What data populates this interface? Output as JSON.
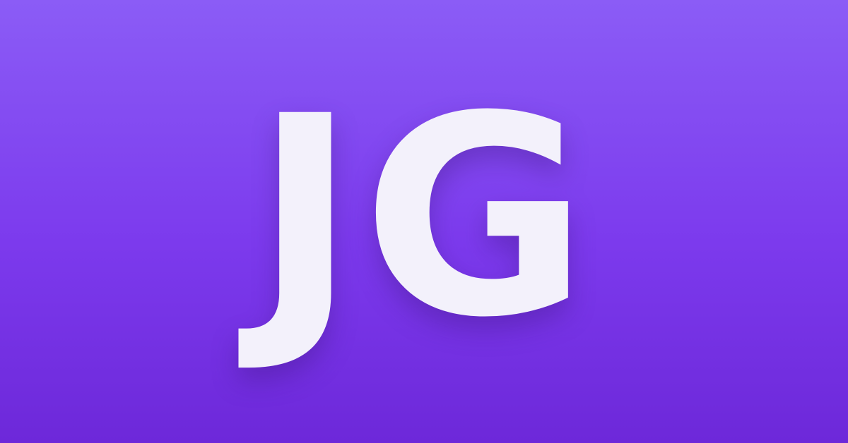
{
  "logo": {
    "monogram": "JG"
  },
  "colors": {
    "background_top": "#8b5cf6",
    "background_bottom": "#6d28d9",
    "text": "#f3f1fb"
  }
}
